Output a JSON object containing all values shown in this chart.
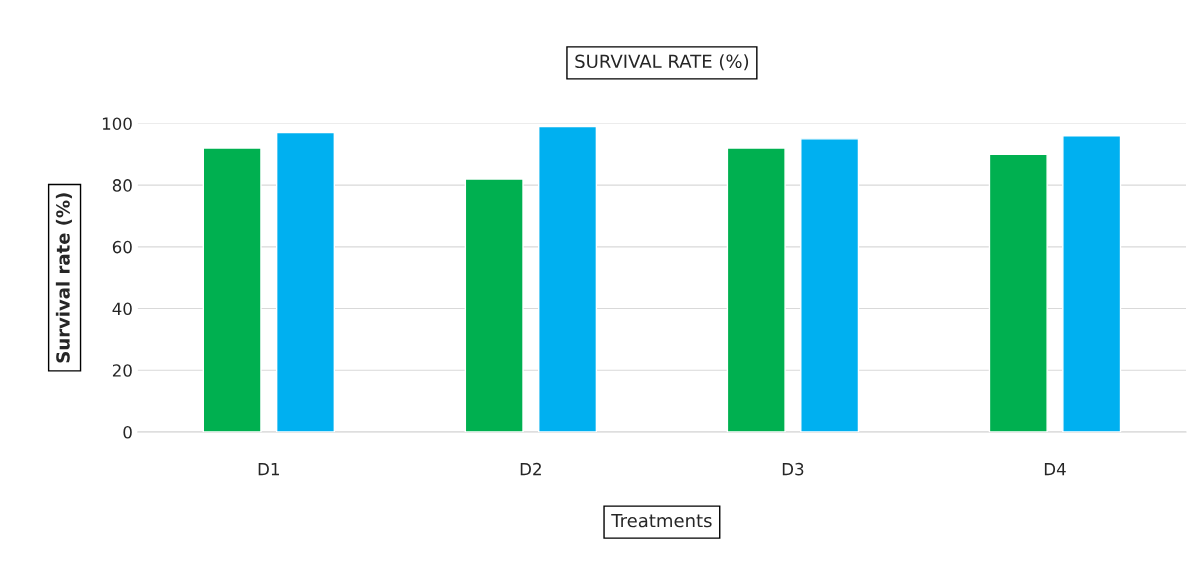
{
  "chart_data": {
    "type": "bar",
    "title": "SURVIVAL RATE (%)",
    "xlabel": "Treatments",
    "ylabel": "Survival rate (%)",
    "categories": [
      "D1",
      "D2",
      "D3",
      "D4"
    ],
    "series": [
      {
        "color": "#00b050",
        "values": [
          92,
          82,
          92,
          90
        ]
      },
      {
        "color": "#00b0f0",
        "values": [
          97,
          99,
          95,
          96
        ]
      }
    ],
    "ylim": [
      0,
      100
    ],
    "yticks": [
      0,
      20,
      40,
      60,
      80,
      100
    ],
    "grid": "y",
    "legend": false
  }
}
